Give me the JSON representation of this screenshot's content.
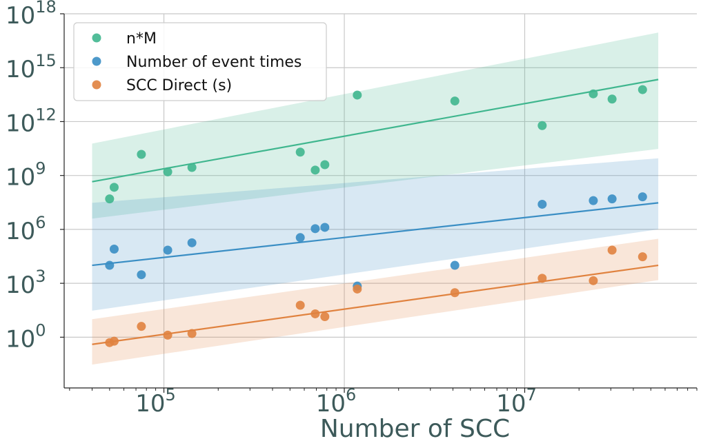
{
  "chart_data": {
    "type": "scatter",
    "title": "",
    "xlabel": "Number of SCC",
    "ylabel": "",
    "xscale": "log",
    "yscale": "log",
    "xlim": [
      28000,
      90000000
    ],
    "ylim": [
      0.0015,
      1e+18
    ],
    "grid": true,
    "legend_placement": "top-left",
    "x_ticks": [
      {
        "value": 100000,
        "base": "10",
        "exp": "5"
      },
      {
        "value": 1000000,
        "base": "10",
        "exp": "6"
      },
      {
        "value": 10000000,
        "base": "10",
        "exp": "7"
      }
    ],
    "y_ticks": [
      {
        "value": 1,
        "base": "10",
        "exp": "0"
      },
      {
        "value": 1000,
        "base": "10",
        "exp": "3"
      },
      {
        "value": 1000000,
        "base": "10",
        "exp": "6"
      },
      {
        "value": 1000000000,
        "base": "10",
        "exp": "9"
      },
      {
        "value": 1000000000000.0,
        "base": "10",
        "exp": "12"
      },
      {
        "value": 1000000000000000.0,
        "base": "10",
        "exp": "15"
      },
      {
        "value": 1e+18,
        "base": "10",
        "exp": "18"
      }
    ],
    "x": [
      50000,
      53000,
      75000,
      105000,
      143000,
      570000,
      690000,
      780000,
      1180000,
      4100000,
      12500000,
      24000000,
      30500000,
      45000000
    ],
    "series": [
      {
        "name": "n*M",
        "color": "#3fb68e",
        "values": [
          50000000,
          220000000,
          15000000000,
          1600000000,
          2800000000,
          20000000000,
          2000000000,
          4000000000,
          30000000000000.0,
          14000000000000.0,
          600000000000.0,
          35000000000000.0,
          18000000000000.0,
          60000000000000.0
        ],
        "fit": {
          "x": [
            40000,
            55000000
          ],
          "y": [
            450000000,
            220000000000000.0
          ]
        },
        "band": {
          "lower": [
            4000000,
            30000000000.0
          ],
          "upper": [
            60000000000.0,
            9e+16
          ]
        }
      },
      {
        "name": "Number of event times",
        "color": "#3a8ec4",
        "values": [
          10000,
          80000,
          3000,
          70000,
          180000,
          350000,
          1100000,
          1300000,
          700,
          10000,
          25000000,
          40000000,
          50000000,
          65000000
        ],
        "fit": {
          "x": [
            40000,
            55000000
          ],
          "y": [
            10000,
            30000000
          ]
        },
        "band": {
          "lower": [
            30,
            1000000
          ],
          "upper": [
            30000000,
            9000000000.0
          ]
        }
      },
      {
        "name": "SCC Direct (s)",
        "color": "#e0823f",
        "values": [
          0.5,
          0.6,
          4,
          1.3,
          1.6,
          60,
          20,
          14,
          480,
          300,
          1900,
          1400,
          70000,
          30000
        ],
        "fit": {
          "x": [
            40000,
            55000000
          ],
          "y": [
            0.4,
            10000
          ]
        },
        "band": {
          "lower": [
            0.03,
            1500
          ],
          "upper": [
            10,
            300000
          ]
        }
      }
    ]
  }
}
